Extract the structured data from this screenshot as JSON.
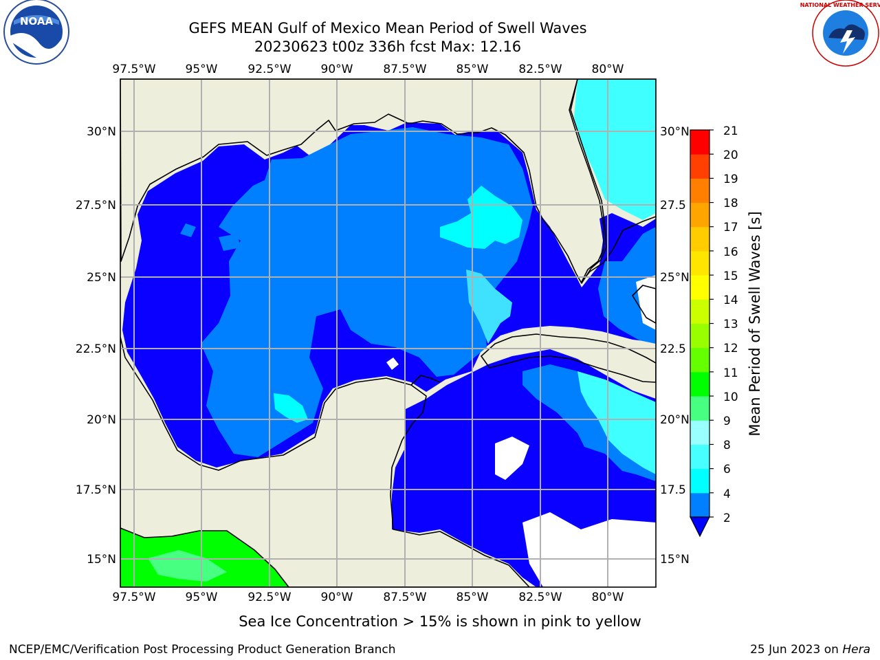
{
  "title": {
    "line1": "GEFS MEAN Gulf of Mexico Mean Period of Swell Waves",
    "line2": "20230623 t00z 336h fcst   Max: 12.16"
  },
  "logos": {
    "left": "NOAA",
    "right": "NATIONAL WEATHER SERVICE"
  },
  "map": {
    "lon_ticks_top": [
      "97.5°W",
      "95°W",
      "92.5°W",
      "90°W",
      "87.5°W",
      "85°W",
      "82.5°W",
      "80°W"
    ],
    "lon_ticks_bottom": [
      "97.5°W",
      "95°W",
      "92.5°W",
      "90°W",
      "87.5°W",
      "85°W",
      "82.5°W",
      "80°W"
    ],
    "lat_ticks_left": [
      "30°N",
      "27.5°N",
      "25°N",
      "22.5°N",
      "20°N",
      "17.5°N",
      "15°N"
    ],
    "lat_ticks_right": [
      "30°N",
      "27.5",
      "25°N",
      "22.5",
      "20°N",
      "17.5",
      "15°N"
    ],
    "extent": {
      "lon_min": -98,
      "lon_max": -78.2,
      "lat_min": 14,
      "lat_max": 31.8
    }
  },
  "colorbar": {
    "label": "Mean Period of Swell Waves [s]",
    "ticks": [
      "21",
      "20",
      "19",
      "18",
      "17",
      "16",
      "15",
      "14",
      "13",
      "12",
      "11",
      "10",
      "9",
      "8",
      "6",
      "4",
      "2"
    ],
    "levels": [
      2,
      4,
      6,
      8,
      9,
      10,
      11,
      12,
      13,
      14,
      15,
      16,
      17,
      18,
      19,
      20,
      21
    ],
    "colors": [
      "#0a00ff",
      "#0080ff",
      "#00ffff",
      "#48ffff",
      "#99ffff",
      "#47ff80",
      "#00ff00",
      "#66ff00",
      "#99ff00",
      "#ccff00",
      "#ffff00",
      "#ffe600",
      "#ffcc00",
      "#ffa500",
      "#ff8000",
      "#ff4000",
      "#ff0000"
    ],
    "extend_min_color": "#0000ff"
  },
  "note": "Sea Ice Concentration > 15% is shown in pink to yellow",
  "footer": {
    "left": "NCEP/EMC/Verification Post Processing Product Generation Branch",
    "right_date": "25 Jun 2023 on ",
    "right_machine": "Hera"
  }
}
